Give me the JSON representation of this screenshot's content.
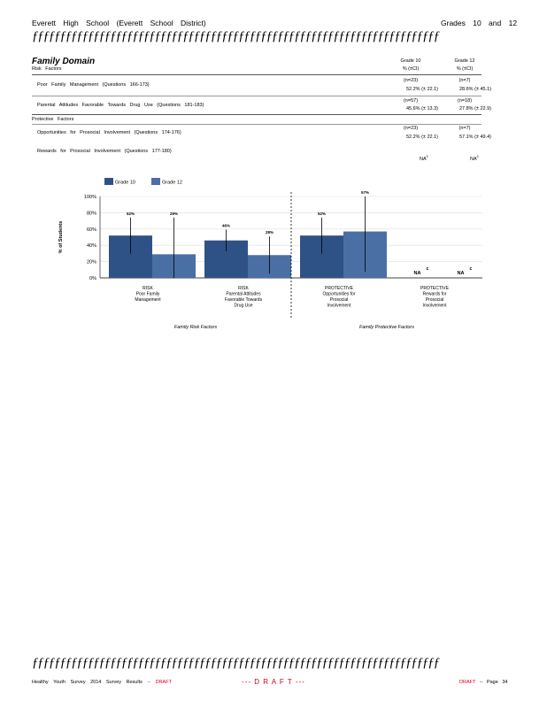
{
  "header": {
    "title": "Everett High School (Everett School District)",
    "grades": "Grades 10 and 12",
    "squiggle": "ƒƒƒƒƒƒƒƒƒƒƒƒƒƒƒƒƒƒƒƒƒƒƒƒƒƒƒƒƒƒƒƒƒƒƒƒƒƒƒƒƒƒƒƒƒƒƒƒƒƒƒƒƒƒƒƒƒƒƒƒƒƒƒƒƒƒƒƒƒƒƒƒƒ"
  },
  "domain": {
    "title": "Family Domain",
    "risk_label": "Risk Factors",
    "protective_label": "Protective Factors",
    "col_grade10": "Grade 10",
    "col_grade12": "Grade 12",
    "col_sub10": "% (±CI)",
    "col_sub12": "% (±CI)"
  },
  "rows": [
    {
      "label": "Poor Family Management (Questions 166-173)",
      "n10": "(n=23)",
      "v10": "52.2% (± 22.1)",
      "n12": "(n=7)",
      "v12": "28.6% (± 45.1)"
    },
    {
      "label": "Parental Attitudes Favorable Towards Drug Use (Questions 181-183)",
      "n10": "(n=57)",
      "v10": "45.6% (± 13.3)",
      "n12": "(n=18)",
      "v12": "27.8% (± 22.9)"
    },
    {
      "label": "Opportunities for Prosocial Involvement (Questions 174-176)",
      "n10": "(n=23)",
      "v10": "52.2% (± 22.1)",
      "n12": "(n=7)",
      "v12": "57.1% (± 49.4)"
    },
    {
      "label": "Rewards for Prosocial Involvement (Questions 177-180)",
      "n10": "NA",
      "v10": "",
      "n12": "NA",
      "v12": ""
    }
  ],
  "na_superscript": "c",
  "chart_data": {
    "type": "bar",
    "ylabel": "% of Students",
    "ylim": [
      0,
      100
    ],
    "yticks": [
      "0%",
      "20%",
      "40%",
      "60%",
      "80%",
      "100%"
    ],
    "categories": [
      [
        "RISK",
        "Poor Family",
        "Management"
      ],
      [
        "RISK",
        "Parental Attitudes",
        "Favorable Towards",
        "Drug Use"
      ],
      [
        "PROTECTIVE",
        "Opportunities for",
        "Prosocial",
        "Involvement"
      ],
      [
        "PROTECTIVE",
        "Rewards for",
        "Prosocial",
        "Involvement"
      ]
    ],
    "series": [
      {
        "name": "Grade 10",
        "color": "#2f5286",
        "values": [
          52,
          46,
          52,
          null
        ],
        "ci": [
          22.1,
          13.3,
          22.1,
          null
        ],
        "labels": [
          "52%",
          "46%",
          "52%",
          "NA"
        ]
      },
      {
        "name": "Grade 12",
        "color": "#4a6fa5",
        "values": [
          29,
          28,
          57,
          null
        ],
        "ci": [
          45.1,
          22.9,
          49.4,
          null
        ],
        "labels": [
          "29%",
          "28%",
          "57%",
          "NA"
        ]
      }
    ],
    "group_labels": [
      "Family Risk Factors",
      "Family Protective Factors"
    ],
    "legend_position": "top",
    "grid": true
  },
  "footer": {
    "left": "Healthy Youth Survey 2014 Survey Results",
    "left_draft": "-- DRAFT",
    "center": "--- D R A F T ---",
    "right_draft": "DRAFT",
    "right_page": "-- Page 34"
  }
}
